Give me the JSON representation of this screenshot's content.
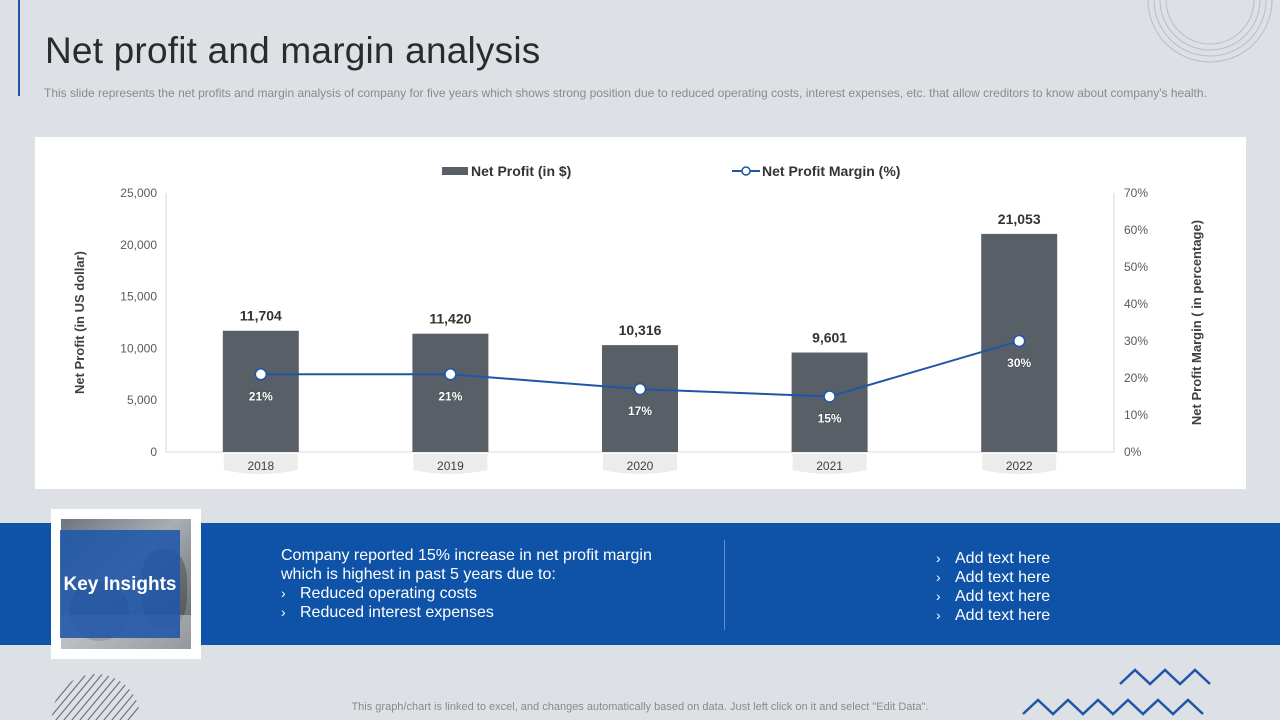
{
  "slide": {
    "title": "Net profit and margin analysis",
    "subtitle": "This slide represents the net profits and margin analysis of company for five years which shows strong position due to reduced operating costs, interest expenses, etc. that allow creditors to know about company's health.",
    "footer": "This graph/chart is linked to excel, and changes automatically based on data. Just left click on it and select \"Edit Data\"."
  },
  "colors": {
    "accent": "#1f56a8",
    "band": "#0e53a7",
    "bar": "#595f67",
    "line": "#1f56a8"
  },
  "chart_data": {
    "type": "bar",
    "categories": [
      "2018",
      "2019",
      "2020",
      "2021",
      "2022"
    ],
    "series": [
      {
        "name": "Net Profit (in $)",
        "type": "bar",
        "axis": "left",
        "values": [
          11704,
          11420,
          10316,
          9601,
          21053
        ],
        "labels": [
          "11,704",
          "11,420",
          "10,316",
          "9,601",
          "21,053"
        ]
      },
      {
        "name": "Net Profit Margin (%)",
        "type": "line",
        "axis": "right",
        "values": [
          21,
          21,
          17,
          15,
          30
        ],
        "labels": [
          "21%",
          "21%",
          "17%",
          "15%",
          "30%"
        ]
      }
    ],
    "ylabel": "Net Profit (in US dollar)",
    "y2label": "Net Profit Margin ( in percentage)",
    "ylim": [
      0,
      25000
    ],
    "y2lim": [
      0,
      70
    ],
    "yticks": [
      "0",
      "5,000",
      "10,000",
      "15,000",
      "20,000",
      "25,000"
    ],
    "y2ticks": [
      "0%",
      "10%",
      "20%",
      "30%",
      "40%",
      "50%",
      "60%",
      "70%"
    ],
    "legend": "top-center",
    "grid": false
  },
  "insights": {
    "heading": "Key Insights",
    "main_text": "Company reported 15% increase in net profit margin which is highest in past 5 years due to:",
    "bullets": [
      "Reduced operating costs",
      "Reduced interest expenses"
    ],
    "side_bullets": [
      "Add text here",
      "Add text here",
      "Add text here",
      "Add text here"
    ],
    "chevron": "›"
  }
}
